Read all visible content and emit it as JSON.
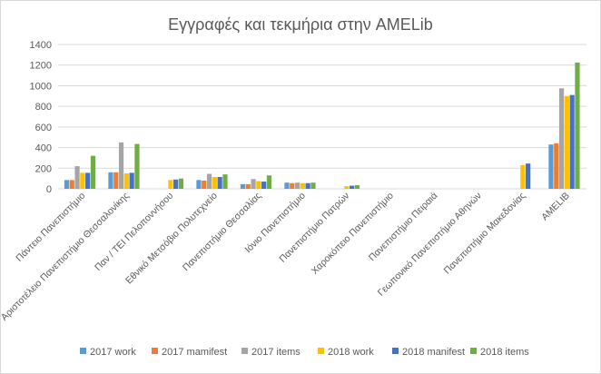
{
  "chart_data": {
    "type": "bar",
    "title": "Εγγραφές και τεκμήρια στην AMELib",
    "xlabel": "",
    "ylabel": "",
    "ylim": [
      0,
      1400
    ],
    "yticks": [
      0,
      200,
      400,
      600,
      800,
      1000,
      1200,
      1400
    ],
    "grid": true,
    "legend_position": "bottom",
    "categories": [
      "Πάντειο Πανεπιστήμιο",
      "Αριστοτέλειο Πανεπιστήμιο Θεσσαλονίκης",
      "Παν / ΤΕΙ Πελοποννήσου",
      "Εθνικό Μετσόβιο Πολυτεχνείο",
      "Πανεπιστήμιο Θεσσαλίας",
      "Ιόνιο Πανεπιστήμιο",
      "Πανεπιστήμιο Πατρών",
      "Χαροκόπειο Πανεπιστήμιο",
      "Πανεπιστήμιο Πειραιά",
      "Γεωπονικό Πανεπιστήμιο Αθηνών",
      "Πανεπιστήμιο Μακεδονίας",
      "AMELIB"
    ],
    "series": [
      {
        "name": "2017 work",
        "color": "#5b9bd5",
        "values": [
          85,
          160,
          0,
          85,
          45,
          60,
          0,
          0,
          0,
          0,
          0,
          430
        ]
      },
      {
        "name": "2017 mamifest",
        "color": "#ed7d31",
        "values": [
          85,
          160,
          0,
          80,
          45,
          55,
          0,
          0,
          0,
          0,
          0,
          440
        ]
      },
      {
        "name": "2017 items",
        "color": "#a5a5a5",
        "values": [
          220,
          450,
          0,
          145,
          95,
          60,
          0,
          0,
          0,
          0,
          0,
          975
        ]
      },
      {
        "name": "2018 work",
        "color": "#ffc000",
        "values": [
          155,
          150,
          85,
          115,
          75,
          55,
          25,
          0,
          0,
          0,
          230,
          900
        ]
      },
      {
        "name": "2018 manifest",
        "color": "#4472c4",
        "values": [
          155,
          155,
          90,
          115,
          70,
          55,
          30,
          0,
          0,
          0,
          245,
          910
        ]
      },
      {
        "name": "2018 items",
        "color": "#70ad47",
        "values": [
          320,
          435,
          100,
          140,
          130,
          60,
          35,
          0,
          0,
          0,
          0,
          1225
        ]
      }
    ]
  }
}
